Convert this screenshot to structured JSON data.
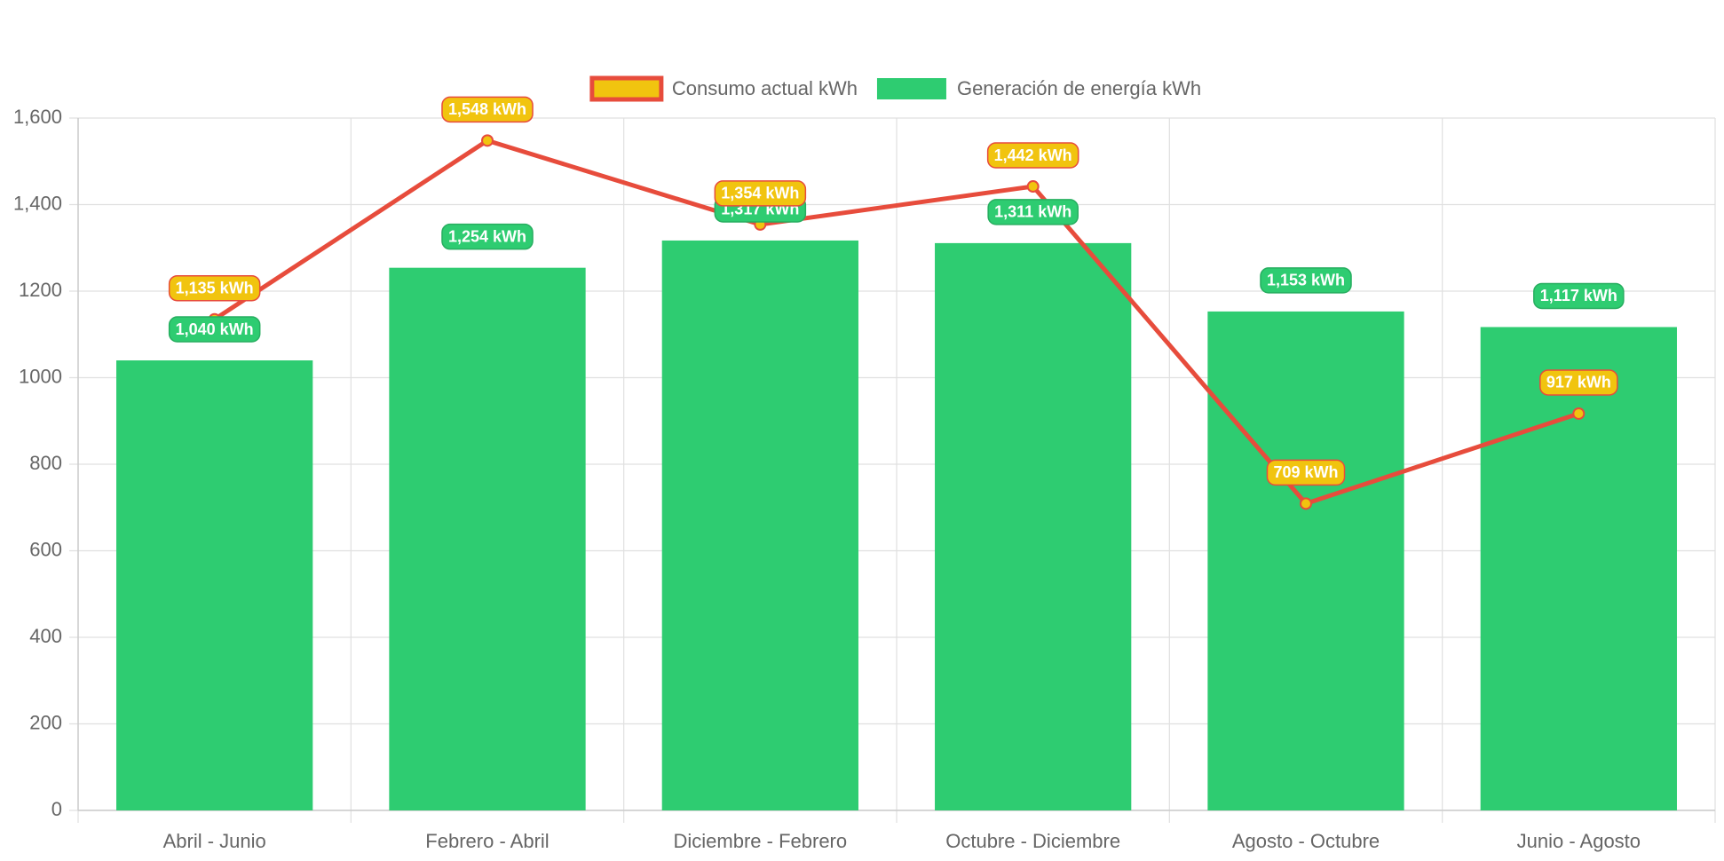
{
  "chart_data": {
    "type": "bar",
    "categories": [
      "Abril - Junio",
      "Febrero - Abril",
      "Diciembre - Febrero",
      "Octubre - Diciembre",
      "Agosto - Octubre",
      "Junio - Agosto"
    ],
    "series": [
      {
        "name": "Consumo actual kWh",
        "type": "line",
        "color": "#e74c3c",
        "point_color": "#f1c40f",
        "values": [
          1135,
          1548,
          1354,
          1442,
          709,
          917
        ],
        "value_labels": [
          "1,135 kWh",
          "1,548 kWh",
          "1,354 kWh",
          "1,442 kWh",
          "709 kWh",
          "917 kWh"
        ]
      },
      {
        "name": "Generación de energía kWh",
        "type": "bar",
        "color": "#2ecc71",
        "values": [
          1040,
          1254,
          1317,
          1311,
          1153,
          1117
        ],
        "value_labels": [
          "1,040 kWh",
          "1,254 kWh",
          "1,317 kWh",
          "1,311 kWh",
          "1,153 kWh",
          "1,117 kWh"
        ]
      }
    ],
    "ylim": [
      0,
      1600
    ],
    "yticks": [
      0,
      200,
      400,
      600,
      800,
      1000,
      1200,
      {
        "value": 1400,
        "label": "1,400"
      },
      {
        "value": 1600,
        "label": "1,600"
      }
    ],
    "grid": true,
    "legend": "top"
  }
}
